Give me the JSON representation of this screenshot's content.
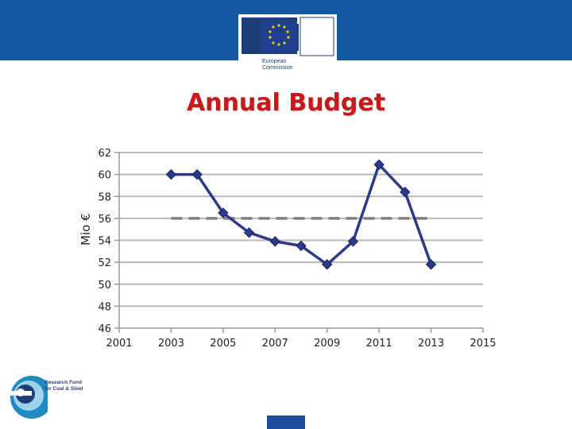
{
  "header": {
    "brand_color": "#1557a0",
    "logo_text_line1": "European",
    "logo_text_line2": "Commission"
  },
  "footer": {
    "logo_text_line1": "Research Fund",
    "logo_text_line2": "for Coal & Steel",
    "tab_color": "#1f4e9c"
  },
  "chart_data": {
    "type": "line",
    "title": "Annual Budget",
    "xlabel": "",
    "ylabel": "Mio €",
    "xlim": [
      2001,
      2015
    ],
    "ylim": [
      46,
      62
    ],
    "x_ticks": [
      "2001",
      "2003",
      "2005",
      "2007",
      "2009",
      "2011",
      "2013",
      "2015"
    ],
    "y_ticks": [
      "46",
      "48",
      "50",
      "52",
      "54",
      "56",
      "58",
      "60",
      "62"
    ],
    "grid": "horizontal",
    "series": [
      {
        "color": "#2e3a87",
        "marker": "diamond",
        "x": [
          2003,
          2004,
          2005,
          2006,
          2007,
          2008,
          2009,
          2010,
          2011,
          2012,
          2013
        ],
        "y": [
          60.0,
          60.0,
          56.5,
          54.7,
          53.9,
          53.5,
          51.8,
          53.9,
          60.9,
          58.4,
          51.8
        ]
      }
    ],
    "reference_line": {
      "y": 56,
      "x": [
        2003,
        2013
      ],
      "style": "dashed",
      "color": "#808080"
    }
  }
}
